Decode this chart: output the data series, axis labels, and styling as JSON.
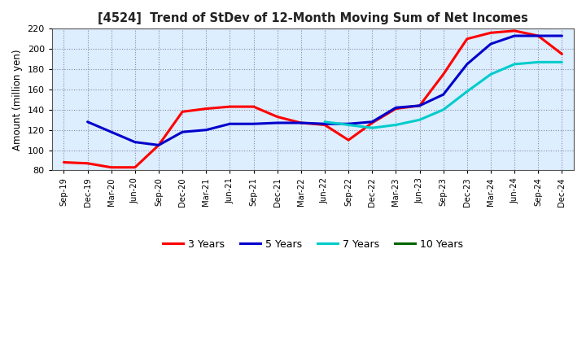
{
  "title": "[4524]  Trend of StDev of 12-Month Moving Sum of Net Incomes",
  "ylabel": "Amount (million yen)",
  "ylim": [
    80,
    220
  ],
  "yticks": [
    80,
    100,
    120,
    140,
    160,
    180,
    200,
    220
  ],
  "background_color": "#ffffff",
  "plot_bg_color": "#ddeeff",
  "grid_color": "#aaaacc",
  "x_labels": [
    "Sep-19",
    "Dec-19",
    "Mar-20",
    "Jun-20",
    "Sep-20",
    "Dec-20",
    "Mar-21",
    "Jun-21",
    "Sep-21",
    "Dec-21",
    "Mar-22",
    "Jun-22",
    "Sep-22",
    "Dec-22",
    "Mar-23",
    "Jun-23",
    "Sep-23",
    "Dec-23",
    "Mar-24",
    "Jun-24",
    "Sep-24",
    "Dec-24"
  ],
  "series": {
    "3 Years": {
      "color": "#ff0000",
      "data": [
        88,
        87,
        83,
        83,
        105,
        138,
        141,
        143,
        143,
        133,
        127,
        125,
        110,
        127,
        141,
        144,
        175,
        210,
        216,
        218,
        213,
        195
      ]
    },
    "5 Years": {
      "color": "#0000cc",
      "data": [
        null,
        128,
        118,
        108,
        105,
        118,
        120,
        126,
        126,
        127,
        127,
        126,
        126,
        128,
        142,
        144,
        155,
        185,
        205,
        213,
        213,
        213
      ]
    },
    "7 Years": {
      "color": "#00cccc",
      "data": [
        null,
        null,
        null,
        null,
        null,
        null,
        null,
        null,
        null,
        null,
        null,
        128,
        125,
        122,
        125,
        130,
        140,
        158,
        175,
        185,
        187,
        187
      ]
    },
    "10 Years": {
      "color": "#006600",
      "data": [
        null,
        null,
        null,
        null,
        null,
        null,
        null,
        null,
        null,
        null,
        null,
        null,
        null,
        null,
        null,
        null,
        null,
        null,
        null,
        null,
        null,
        null
      ]
    }
  }
}
